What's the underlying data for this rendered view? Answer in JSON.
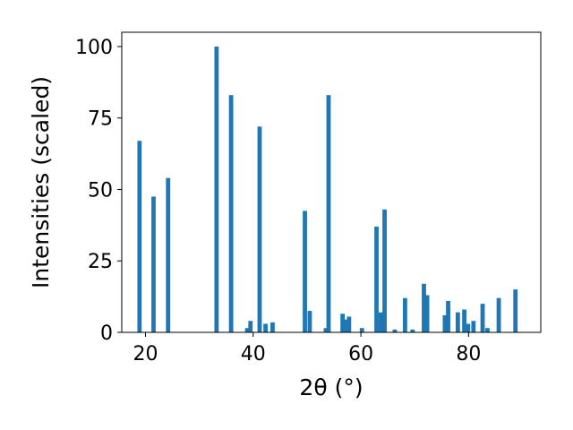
{
  "chart_data": {
    "type": "bar",
    "xlabel": "2θ (°)",
    "ylabel": "Intensities (scaled)",
    "xlim": [
      15.6,
      93.4
    ],
    "ylim": [
      0,
      105
    ],
    "xticks": [
      20,
      40,
      60,
      80
    ],
    "yticks": [
      0,
      25,
      50,
      75,
      100
    ],
    "bar_width": 0.8,
    "color": "#1f77b4",
    "series": [
      {
        "x": [
          18.9,
          21.5,
          24.2,
          33.2,
          35.9,
          38.9,
          39.5,
          41.2,
          42.3,
          43.6,
          49.6,
          50.5,
          53.5,
          54.0,
          56.6,
          57.2,
          57.8,
          60.2,
          62.9,
          63.7,
          64.4,
          66.3,
          68.2,
          69.6,
          71.7,
          72.3,
          75.6,
          76.2,
          78.0,
          79.2,
          79.9,
          80.9,
          82.6,
          83.5,
          85.6,
          88.7
        ],
        "y": [
          67,
          47.5,
          54,
          100,
          83,
          1.5,
          4,
          72,
          3,
          3.5,
          42.5,
          7.5,
          1.5,
          83,
          6.5,
          4.5,
          5.5,
          1.5,
          37,
          7,
          43,
          1,
          12,
          1,
          17,
          13,
          6,
          11,
          7,
          8,
          3,
          4,
          10,
          1.5,
          12,
          15
        ]
      }
    ]
  }
}
